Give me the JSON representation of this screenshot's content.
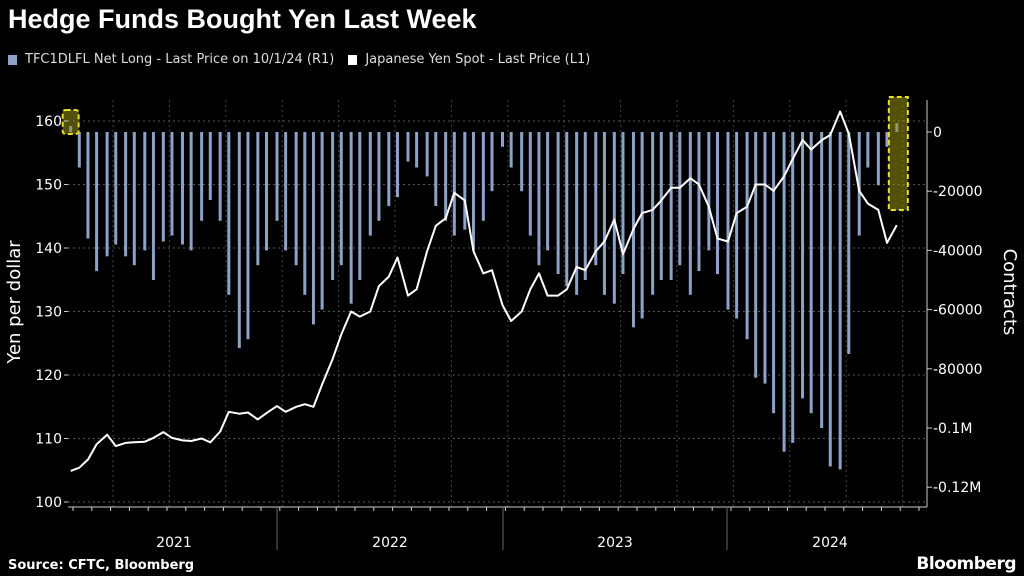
{
  "title": "Hedge Funds Bought Yen Last Week",
  "legend": [
    {
      "label": "TFC1DLFL Net Long - Last Price on 10/1/24 (R1)",
      "color": "#8ea2c8"
    },
    {
      "label": "Japanese Yen Spot - Last Price (L1)",
      "color": "#ffffff"
    }
  ],
  "source": "Source: CFTC, Bloomberg",
  "logo": "Bloomberg",
  "highlight_color": "#e8e020",
  "chart_data": {
    "type": "bar+line",
    "title": "Hedge Funds Bought Yen Last Week",
    "ylabel_left": "Yen per dollar",
    "ylabel_right": "Contracts",
    "ylim_left": [
      99,
      164
    ],
    "ylim_right": [
      -125000,
      12000
    ],
    "yticks_left": [
      {
        "v": 100,
        "label": "100"
      },
      {
        "v": 110,
        "label": "110"
      },
      {
        "v": 120,
        "label": "120"
      },
      {
        "v": 130,
        "label": "130"
      },
      {
        "v": 140,
        "label": "140"
      },
      {
        "v": 150,
        "label": "150"
      },
      {
        "v": 160,
        "label": "160"
      }
    ],
    "yticks_right": [
      {
        "v": 0,
        "label": "0"
      },
      {
        "v": -20000,
        "label": "-20000"
      },
      {
        "v": -40000,
        "label": "-40000"
      },
      {
        "v": -60000,
        "label": "-60000"
      },
      {
        "v": -80000,
        "label": "-80000"
      },
      {
        "v": -100000,
        "label": "-0.1M"
      },
      {
        "v": -120000,
        "label": "-0.12M"
      }
    ],
    "xticks": [
      "2021",
      "2022",
      "2023",
      "2024"
    ],
    "grid": true,
    "legend_position": "top-left",
    "highlighted": [
      "2021-02-01",
      "2024-10-01"
    ],
    "x": [
      "2021-02-01",
      "2021-02-15",
      "2021-03-01",
      "2021-03-15",
      "2021-04-01",
      "2021-04-15",
      "2021-05-01",
      "2021-05-15",
      "2021-06-01",
      "2021-06-15",
      "2021-07-01",
      "2021-07-15",
      "2021-08-01",
      "2021-08-15",
      "2021-09-01",
      "2021-09-15",
      "2021-10-01",
      "2021-10-15",
      "2021-11-01",
      "2021-11-15",
      "2021-12-01",
      "2021-12-15",
      "2022-01-01",
      "2022-01-15",
      "2022-02-01",
      "2022-02-15",
      "2022-03-01",
      "2022-03-15",
      "2022-04-01",
      "2022-04-15",
      "2022-05-01",
      "2022-05-15",
      "2022-06-01",
      "2022-06-15",
      "2022-07-01",
      "2022-07-15",
      "2022-08-01",
      "2022-08-15",
      "2022-09-01",
      "2022-09-15",
      "2022-10-01",
      "2022-10-15",
      "2022-11-01",
      "2022-11-15",
      "2022-12-01",
      "2022-12-15",
      "2023-01-01",
      "2023-01-15",
      "2023-02-01",
      "2023-02-15",
      "2023-03-01",
      "2023-03-15",
      "2023-04-01",
      "2023-04-15",
      "2023-05-01",
      "2023-05-15",
      "2023-06-01",
      "2023-06-15",
      "2023-07-01",
      "2023-07-15",
      "2023-08-01",
      "2023-08-15",
      "2023-09-01",
      "2023-09-15",
      "2023-10-01",
      "2023-10-15",
      "2023-11-01",
      "2023-11-15",
      "2023-12-01",
      "2023-12-15",
      "2024-01-01",
      "2024-01-15",
      "2024-02-01",
      "2024-02-15",
      "2024-03-01",
      "2024-03-15",
      "2024-04-01",
      "2024-04-15",
      "2024-05-01",
      "2024-05-15",
      "2024-06-01",
      "2024-06-15",
      "2024-07-01",
      "2024-07-15",
      "2024-08-01",
      "2024-08-15",
      "2024-09-01",
      "2024-09-15",
      "2024-10-01"
    ],
    "series": [
      {
        "name": "TFC1DLFL Net Long - Last Price on 10/1/24 (R1)",
        "type": "bar",
        "axis": "right",
        "color": "#8ea2c8",
        "values": [
          2000,
          -12000,
          -36000,
          -47000,
          -42000,
          -38000,
          -42000,
          -45000,
          -40000,
          -50000,
          -37000,
          -35000,
          -38000,
          -40000,
          -30000,
          -23000,
          -30000,
          -55000,
          -73000,
          -70000,
          -45000,
          -40000,
          -30000,
          -40000,
          -45000,
          -55000,
          -65000,
          -60000,
          -50000,
          -45000,
          -58000,
          -50000,
          -35000,
          -30000,
          -25000,
          -22000,
          -10000,
          -12000,
          -15000,
          -25000,
          -30000,
          -35000,
          -33000,
          -40000,
          -30000,
          -20000,
          -5000,
          -12000,
          -20000,
          -35000,
          -45000,
          -40000,
          -48000,
          -52000,
          -55000,
          -50000,
          -45000,
          -55000,
          -58000,
          -48000,
          -66000,
          -63000,
          -55000,
          -50000,
          -50000,
          -45000,
          -55000,
          -47000,
          -40000,
          -48000,
          -60000,
          -63000,
          -70000,
          -83000,
          -85000,
          -95000,
          -108000,
          -105000,
          -90000,
          -95000,
          -100000,
          -113000,
          -114000,
          -75000,
          -35000,
          -12000,
          -18000,
          -5000,
          3000
        ]
      },
      {
        "name": "Japanese Yen Spot - Last Price (L1)",
        "type": "line",
        "axis": "left",
        "color": "#ffffff",
        "values": [
          104.9,
          105.4,
          106.7,
          109.1,
          110.6,
          108.8,
          109.3,
          109.4,
          109.5,
          110.1,
          111.0,
          110.1,
          109.7,
          109.6,
          110.0,
          109.4,
          111.1,
          114.2,
          113.9,
          114.1,
          113.0,
          114.0,
          115.1,
          114.2,
          115.0,
          115.4,
          115.0,
          118.5,
          122.5,
          126.4,
          130.0,
          129.2,
          130.0,
          134.0,
          135.5,
          138.5,
          132.5,
          133.5,
          139.5,
          143.5,
          144.7,
          148.7,
          147.5,
          139.5,
          136.0,
          136.5,
          131.0,
          128.5,
          130.0,
          133.5,
          136.0,
          132.5,
          132.5,
          133.5,
          137.0,
          136.5,
          139.5,
          141.0,
          144.5,
          139.0,
          143.0,
          145.5,
          146.0,
          147.5,
          149.5,
          149.5,
          151.0,
          150.0,
          146.5,
          141.5,
          141.0,
          145.5,
          146.5,
          150.0,
          150.0,
          149.0,
          151.3,
          154.0,
          157.0,
          155.5,
          157.0,
          157.8,
          161.5,
          158.0,
          149.0,
          147.0,
          146.0,
          140.8,
          143.6
        ]
      }
    ]
  }
}
